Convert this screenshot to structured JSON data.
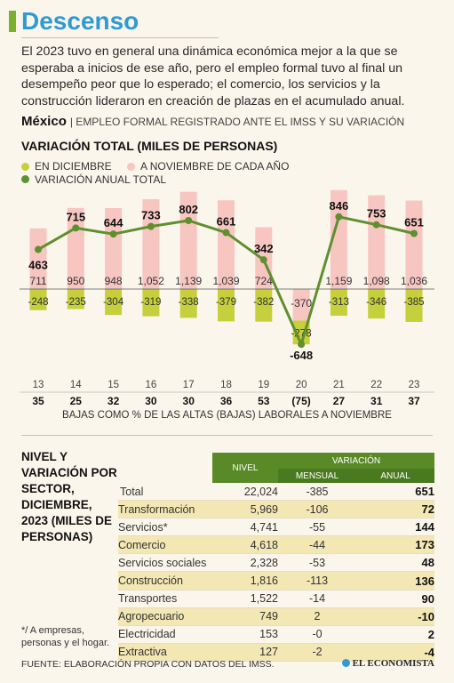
{
  "header": {
    "title": "Descenso",
    "intro": "El 2023 tuvo en general una dinámica económica mejor a la que se esperaba a inicios de ese año, pero el empleo formal tuvo al final un desempeño peor que lo esperado; el comercio, los servicios y la construcción lideraron en creación de plazas en el acumulado anual.",
    "country": "México",
    "subtitle": "| EMPLEO FORMAL REGISTRADO ANTE EL IMSS Y SU VARIACIÓN"
  },
  "chart_data": {
    "type": "bar+line",
    "title": "VARIACIÓN TOTAL (MILES DE PERSONAS)",
    "legend": [
      "EN DICIEMBRE",
      "A NOVIEMBRE DE CADA AÑO",
      "VARIACIÓN ANUAL TOTAL"
    ],
    "colors": {
      "december": "#c6cf3c",
      "november": "#f7c6c1",
      "annual": "#5f8f2e"
    },
    "years": [
      "13",
      "14",
      "15",
      "16",
      "17",
      "18",
      "19",
      "20",
      "21",
      "22",
      "23"
    ],
    "november_values": [
      711,
      950,
      948,
      1052,
      1139,
      1039,
      724,
      -370,
      1159,
      1098,
      1036
    ],
    "november_labels": [
      "711",
      "950",
      "948",
      "1,052",
      "1,139",
      "1,039",
      "724",
      "-370",
      "1,159",
      "1,098",
      "1,036"
    ],
    "december_values": [
      -248,
      -235,
      -304,
      -319,
      -338,
      -379,
      -382,
      -278,
      -313,
      -346,
      -385
    ],
    "annual_values": [
      463,
      715,
      644,
      733,
      802,
      661,
      342,
      -648,
      846,
      753,
      651
    ],
    "bajas_labels": [
      "35",
      "25",
      "32",
      "30",
      "30",
      "36",
      "53",
      "(75)",
      "27",
      "31",
      "37"
    ],
    "xlabel": "BAJAS COMO % DE LAS ALTAS (BAJAS) LABORALES A NOVIEMBRE"
  },
  "sector_table": {
    "title": "NIVEL Y VARIACIÓN POR SECTOR, DICIEMBRE, 2023 (MILES DE PERSONAS)",
    "headers": {
      "nivel": "NIVEL",
      "variacion": "VARIACIÓN",
      "mensual": "MENSUAL",
      "anual": "ANUAL"
    },
    "rows": [
      {
        "name": "Total",
        "nivel": "22,024",
        "mensual": "-385",
        "anual": "651"
      },
      {
        "name": "Transformación",
        "nivel": "5,969",
        "mensual": "-106",
        "anual": "72"
      },
      {
        "name": "Servicios*",
        "nivel": "4,741",
        "mensual": "-55",
        "anual": "144"
      },
      {
        "name": "Comercio",
        "nivel": "4,618",
        "mensual": "-44",
        "anual": "173"
      },
      {
        "name": "Servicios sociales",
        "nivel": "2,328",
        "mensual": "-53",
        "anual": "48"
      },
      {
        "name": "Construcción",
        "nivel": "1,816",
        "mensual": "-113",
        "anual": "136"
      },
      {
        "name": "Transportes",
        "nivel": "1,522",
        "mensual": "-14",
        "anual": "90"
      },
      {
        "name": "Agropecuario",
        "nivel": "749",
        "mensual": "2",
        "anual": "-10"
      },
      {
        "name": "Electricidad",
        "nivel": "153",
        "mensual": "-0",
        "anual": "2"
      },
      {
        "name": "Extractiva",
        "nivel": "127",
        "mensual": "-2",
        "anual": "-4"
      }
    ],
    "footnote": "*/ A empresas, personas y el hogar."
  },
  "footer": {
    "source": "FUENTE: ELABORACIÓN PROPIA CON DATOS DEL IMSS.",
    "brand": "EL ECONOMISTA"
  }
}
